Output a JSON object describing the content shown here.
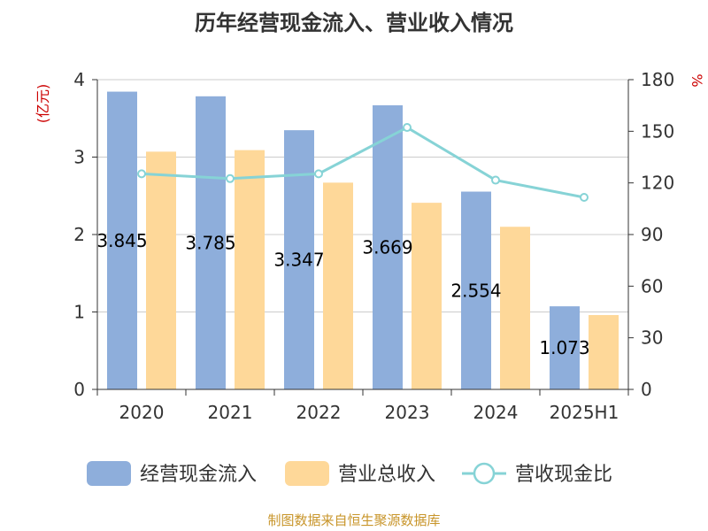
{
  "chart_data": {
    "type": "bar",
    "title": "历年经营现金流入、营业收入情况",
    "categories": [
      "2020",
      "2021",
      "2022",
      "2023",
      "2024",
      "2025H1"
    ],
    "left_axis": {
      "unit": "(亿元)",
      "ylim": [
        0,
        4
      ],
      "ticks": [
        "0",
        "1",
        "2",
        "3",
        "4"
      ]
    },
    "right_axis": {
      "unit": "%",
      "ylim": [
        0,
        180
      ],
      "ticks": [
        "0",
        "30",
        "60",
        "90",
        "120",
        "150",
        "180"
      ]
    },
    "grid": true,
    "legend_placement": "bottom",
    "series": [
      {
        "name": "经营现金流入",
        "kind": "bar",
        "axis": "left",
        "color": "#8eaedb",
        "values": [
          3.845,
          3.785,
          3.347,
          3.669,
          2.554,
          1.073
        ],
        "labels": [
          "3.845",
          "3.785",
          "3.347",
          "3.669",
          "2.554",
          "1.073"
        ]
      },
      {
        "name": "营业总收入",
        "kind": "bar",
        "axis": "left",
        "color": "#fed899",
        "values": [
          3.07,
          3.09,
          2.67,
          2.41,
          2.1,
          0.96
        ]
      },
      {
        "name": "营收现金比",
        "kind": "line",
        "axis": "right",
        "color": "#86d3d6",
        "values": [
          125.3,
          122.5,
          125.3,
          152.2,
          121.6,
          111.6
        ]
      }
    ],
    "source": "制图数据来自恒生聚源数据库"
  }
}
